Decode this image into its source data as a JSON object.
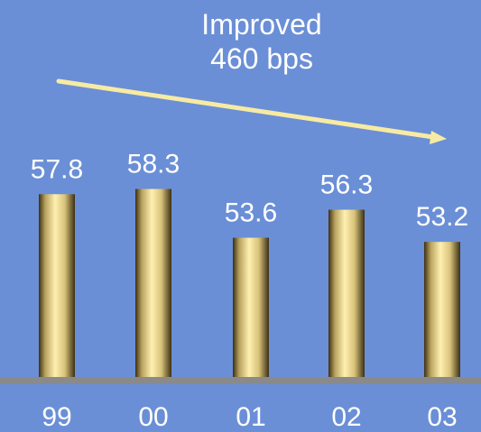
{
  "chart_data": {
    "type": "bar",
    "categories": [
      "99",
      "00",
      "01",
      "02",
      "03"
    ],
    "values": [
      57.8,
      58.3,
      53.6,
      56.3,
      53.2
    ],
    "data_labels": [
      "57.8",
      "58.3",
      "53.6",
      "56.3",
      "53.2"
    ],
    "title": "",
    "xlabel": "",
    "ylabel": "",
    "ylim": [
      40,
      60
    ],
    "grid": false,
    "legend": "none",
    "annotation": {
      "line1": "Improved",
      "line2": "460 bps"
    },
    "colors": {
      "background": "#6b8fd6",
      "baseline": "#8a8a8a",
      "arrow": "#f7eba3",
      "text": "#ffffff",
      "bar_light": "#fff0b0",
      "bar_mid": "#d8c27a",
      "bar_dark": "#3b2f12"
    }
  }
}
